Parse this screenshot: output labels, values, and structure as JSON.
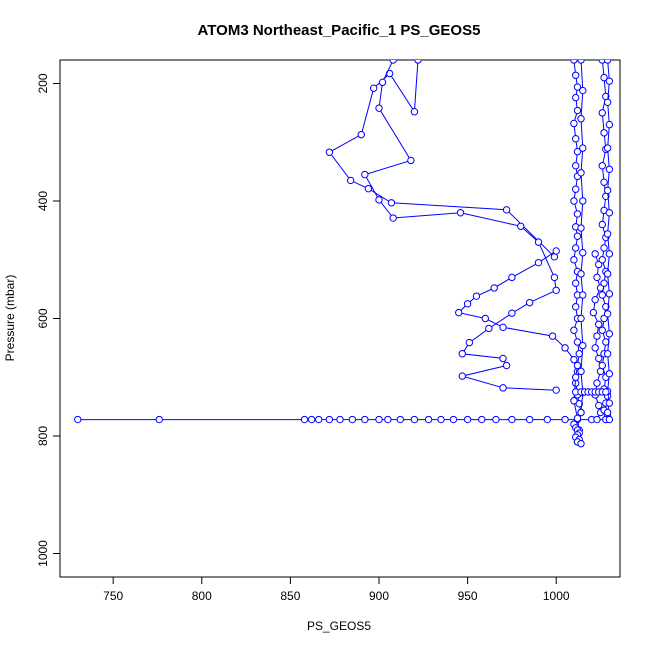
{
  "chart_data": {
    "type": "line",
    "title": "ATOM3 Northeast_Pacific_1 PS_GEOS5",
    "xlabel": "PS_GEOS5",
    "ylabel": "Pressure (mbar)",
    "xlim": [
      720,
      1036
    ],
    "ylim": [
      1040,
      160
    ],
    "y_reversed": true,
    "x_ticks": [
      750,
      800,
      850,
      900,
      950,
      1000
    ],
    "y_ticks": [
      200,
      400,
      600,
      800,
      1000
    ],
    "grid": false,
    "legend": "none",
    "series_color": "#0000ff",
    "series": [
      {
        "marker": "open-circle",
        "x": [
          922,
          920,
          906,
          897,
          890,
          872,
          884,
          894,
          907,
          972,
          999
        ],
        "y": [
          160,
          248,
          183,
          208,
          287,
          317,
          365,
          379,
          403,
          415,
          495
        ]
      },
      {
        "marker": "open-circle",
        "x": [
          908,
          902,
          900,
          918,
          892,
          900,
          908,
          946,
          980,
          990,
          999,
          1000,
          985,
          975,
          962,
          951,
          947,
          970,
          972,
          947,
          970,
          1000
        ],
        "y": [
          160,
          198,
          242,
          331,
          355,
          398,
          429,
          420,
          443,
          470,
          530,
          552,
          573,
          591,
          617,
          641,
          660,
          668,
          680,
          698,
          718,
          722
        ]
      },
      {
        "marker": "open-circle",
        "x": [
          1000,
          990,
          975,
          965,
          955,
          950,
          945,
          960,
          970,
          998,
          1005,
          1010,
          1012,
          1011,
          1012,
          1013,
          1014
        ],
        "y": [
          485,
          505,
          530,
          548,
          562,
          575,
          590,
          600,
          615,
          630,
          650,
          670,
          690,
          710,
          730,
          745,
          760
        ]
      },
      {
        "marker": "open-circle",
        "x": [
          730,
          776,
          858,
          862,
          866,
          872,
          878,
          885,
          892,
          900,
          905,
          912,
          920,
          928,
          935,
          942,
          950,
          958,
          966,
          975,
          985,
          995,
          1005,
          1012,
          1020,
          1028
        ],
        "y": [
          772,
          772,
          772,
          772,
          772,
          772,
          772,
          772,
          772,
          772,
          772,
          772,
          772,
          772,
          772,
          772,
          772,
          772,
          772,
          772,
          772,
          772,
          772,
          772,
          772,
          772
        ]
      },
      {
        "marker": "open-circle",
        "x": [
          1010,
          1011,
          1012,
          1011,
          1012,
          1010,
          1011,
          1012,
          1011,
          1012,
          1011,
          1010,
          1012,
          1011,
          1012,
          1011,
          1010,
          1012,
          1011,
          1012,
          1011,
          1012,
          1010,
          1012,
          1013,
          1012,
          1011,
          1010,
          1012,
          1013,
          1012
        ],
        "y": [
          160,
          186,
          206,
          224,
          246,
          268,
          294,
          316,
          340,
          358,
          380,
          400,
          422,
          444,
          460,
          480,
          500,
          520,
          540,
          560,
          580,
          600,
          620,
          640,
          660,
          680,
          700,
          740,
          770,
          790,
          810
        ]
      },
      {
        "marker": "open-circle",
        "x": [
          1014,
          1015,
          1014,
          1015,
          1014,
          1015,
          1014,
          1015,
          1014,
          1015,
          1014,
          1015,
          1014,
          1015,
          1014
        ],
        "y": [
          160,
          212,
          260,
          310,
          352,
          400,
          446,
          488,
          524,
          560,
          600,
          646,
          690,
          726,
          760
        ]
      },
      {
        "marker": "open-circle",
        "x": [
          1022,
          1024,
          1023,
          1025,
          1022,
          1021,
          1024,
          1023,
          1022,
          1024,
          1025,
          1023,
          1022,
          1024,
          1025,
          1023
        ],
        "y": [
          490,
          508,
          530,
          548,
          568,
          590,
          610,
          630,
          650,
          668,
          690,
          710,
          730,
          748,
          760,
          772
        ]
      },
      {
        "marker": "open-circle",
        "x": [
          1026,
          1027,
          1028,
          1026,
          1027,
          1028,
          1026,
          1027,
          1028,
          1027,
          1026,
          1028,
          1027,
          1026,
          1028,
          1027,
          1026,
          1028,
          1027,
          1026,
          1028,
          1027,
          1026,
          1028,
          1027,
          1029,
          1028,
          1027,
          1029,
          1028
        ],
        "y": [
          160,
          190,
          222,
          250,
          284,
          312,
          340,
          368,
          392,
          416,
          440,
          462,
          480,
          500,
          520,
          540,
          560,
          580,
          600,
          620,
          640,
          660,
          680,
          700,
          720,
          732,
          744,
          756,
          766,
          772
        ]
      },
      {
        "marker": "open-circle",
        "x": [
          1029,
          1030,
          1029,
          1030,
          1029,
          1030,
          1029,
          1030,
          1029,
          1030,
          1029,
          1030,
          1029,
          1030,
          1029,
          1030,
          1029,
          1030,
          1029,
          1030
        ],
        "y": [
          160,
          196,
          232,
          270,
          310,
          346,
          382,
          420,
          456,
          490,
          524,
          558,
          592,
          626,
          660,
          694,
          724,
          744,
          760,
          772
        ]
      },
      {
        "marker": "open-circle",
        "x": [
          1011,
          1014,
          1016,
          1018,
          1020,
          1022,
          1024,
          1026,
          1028
        ],
        "y": [
          725,
          725,
          725,
          725,
          725,
          725,
          725,
          725,
          725
        ]
      },
      {
        "marker": "open-circle",
        "x": [
          1010,
          1011,
          1012,
          1013,
          1012,
          1011,
          1013,
          1012,
          1014
        ],
        "y": [
          780,
          786,
          790,
          795,
          798,
          802,
          806,
          810,
          813
        ]
      }
    ]
  }
}
